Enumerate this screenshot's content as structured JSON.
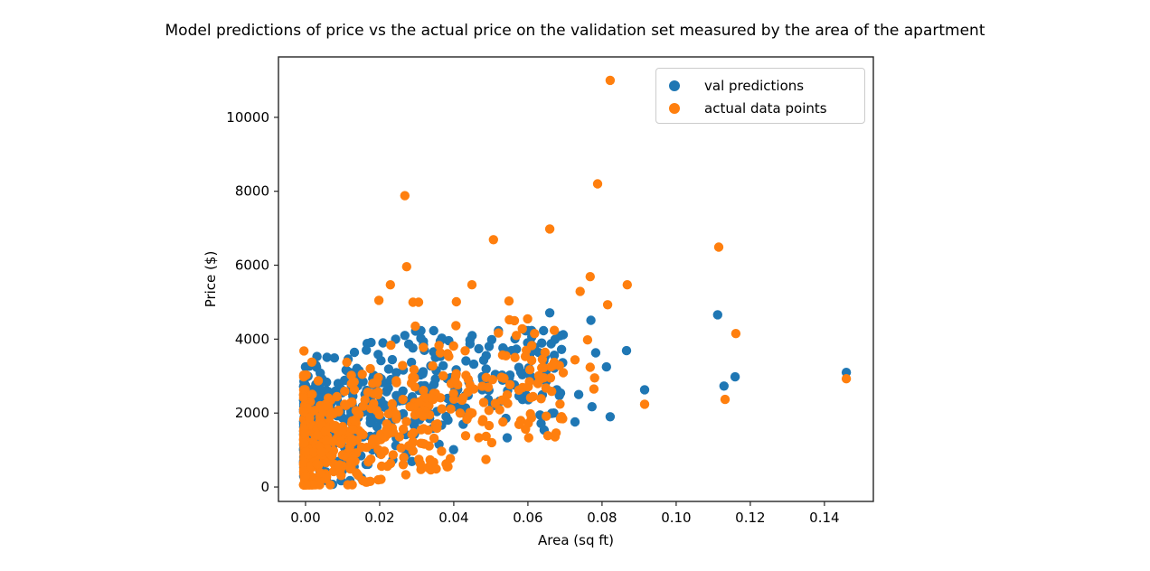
{
  "figure": {
    "background": "#ffffff"
  },
  "chart_data": {
    "type": "scatter",
    "title": "Model predictions of price vs the actual price on the validation set measured by the area of the apartment",
    "xlabel": "Area (sq ft)",
    "ylabel": "Price ($)",
    "xlim": [
      -0.0073,
      0.1532
    ],
    "ylim": [
      -390,
      11634
    ],
    "grid": false,
    "xticks": {
      "values": [
        0.0,
        0.02,
        0.04,
        0.06,
        0.08,
        0.1,
        0.12,
        0.14
      ],
      "labels": [
        "0.00",
        "0.02",
        "0.04",
        "0.06",
        "0.08",
        "0.10",
        "0.12",
        "0.14"
      ]
    },
    "yticks": {
      "values": [
        0,
        2000,
        4000,
        6000,
        8000,
        10000
      ],
      "labels": [
        "0",
        "2000",
        "4000",
        "6000",
        "8000",
        "10000"
      ]
    },
    "legend": {
      "position": "upper right",
      "entries": [
        {
          "label": "val predictions",
          "color": "#1f77b4"
        },
        {
          "label": "actual data points",
          "color": "#ff7f0e"
        }
      ]
    },
    "marker": {
      "radius_px": 5.2
    },
    "series": [
      {
        "name": "val predictions",
        "color": "#1f77b4",
        "outlier_points": [
          [
            0.0659,
            4710
          ],
          [
            0.1112,
            4660
          ],
          [
            0.077,
            4510
          ],
          [
            0.0297,
            4220
          ],
          [
            0.0268,
            4100
          ],
          [
            0.0243,
            4000
          ],
          [
            0.0209,
            3900
          ],
          [
            0.0866,
            3690
          ],
          [
            0.0783,
            3630
          ],
          [
            0.0556,
            3690
          ],
          [
            0.0164,
            3700
          ],
          [
            0.0812,
            3250
          ],
          [
            0.0607,
            3000
          ],
          [
            0.1459,
            3100
          ],
          [
            0.1159,
            2980
          ],
          [
            0.1129,
            2730
          ],
          [
            0.0915,
            2630
          ],
          [
            0.0737,
            2500
          ],
          [
            0.0727,
            1760
          ],
          [
            0.0773,
            2170
          ],
          [
            0.0822,
            1900
          ],
          [
            0.067,
            2000
          ],
          [
            0.0678,
            2630
          ],
          [
            0.0688,
            2540
          ],
          [
            0.0644,
            1540
          ],
          [
            0.003,
            3240
          ],
          [
            0.0078,
            3490
          ],
          [
            0.0115,
            3460
          ],
          [
            0.0041,
            2850
          ],
          [
            0.0005,
            1760
          ],
          [
            0.0,
            490
          ],
          [
            0.0073,
            73
          ],
          [
            0.012,
            171
          ],
          [
            0.0151,
            244
          ]
        ],
        "cloud": {
          "base": 1350,
          "slope": 26000,
          "sigma": 780,
          "skew": 420,
          "floor_slope": 15000,
          "floor_offset": -120,
          "clip_min": 170,
          "cap_base": 3450,
          "cap_slope": 26000,
          "cap_max": 4230
        }
      },
      {
        "name": "actual data points",
        "color": "#ff7f0e",
        "outlier_points": [
          [
            0.0822,
            11000
          ],
          [
            0.0788,
            8200
          ],
          [
            0.0268,
            7880
          ],
          [
            0.0659,
            6980
          ],
          [
            0.0507,
            6690
          ],
          [
            0.1115,
            6490
          ],
          [
            0.0273,
            5960
          ],
          [
            0.0768,
            5690
          ],
          [
            0.0229,
            5470
          ],
          [
            0.0449,
            5470
          ],
          [
            0.0868,
            5470
          ],
          [
            0.0741,
            5290
          ],
          [
            0.0549,
            5030
          ],
          [
            0.0198,
            5050
          ],
          [
            0.029,
            5000
          ],
          [
            0.0305,
            5000
          ],
          [
            0.0407,
            5010
          ],
          [
            0.0815,
            4930
          ],
          [
            0.1161,
            4150
          ],
          [
            0.0761,
            3980
          ],
          [
            0.0727,
            3440
          ],
          [
            0.0671,
            3370
          ],
          [
            0.0661,
            2950
          ],
          [
            0.0768,
            3240
          ],
          [
            0.078,
            2950
          ],
          [
            0.0778,
            2650
          ],
          [
            0.0915,
            2240
          ],
          [
            0.1132,
            2370
          ],
          [
            0.1459,
            2930
          ],
          [
            0.0688,
            1850
          ],
          [
            0.0676,
            1460
          ],
          [
            0.0654,
            1390
          ],
          [
            0.0,
            290
          ]
        ],
        "cloud": {
          "base": 600,
          "slope": 30000,
          "sigma": 800,
          "skew": 520,
          "floor_slope": 19000,
          "floor_offset": -180,
          "clip_min": 60,
          "cap_base": 4250,
          "cap_slope": 5000,
          "cap_max": 4800
        }
      }
    ],
    "cloud_model": {
      "seed": 99,
      "n_pairs": 520,
      "x_min": -0.0005,
      "x_max": 0.07,
      "x_power": 2.6
    }
  }
}
